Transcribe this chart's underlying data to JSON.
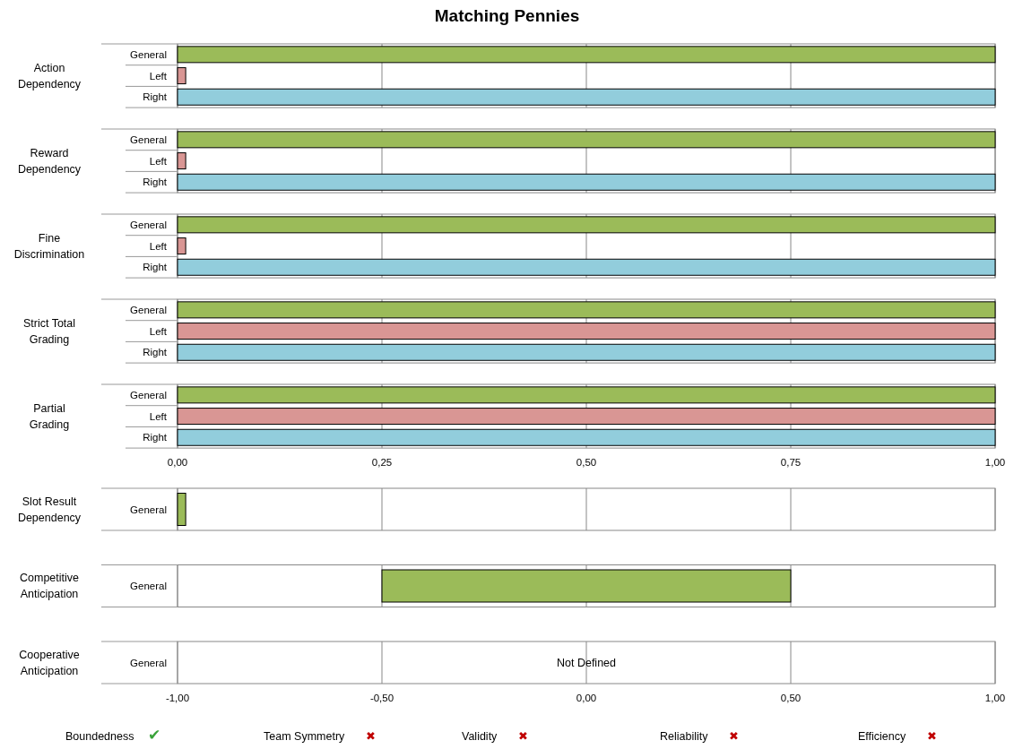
{
  "chart_data": [
    {
      "type": "bar",
      "orientation": "horizontal",
      "title": "Matching Pennies",
      "ylabel": "Action Dependency",
      "categories": [
        "General",
        "Left",
        "Right"
      ],
      "values": [
        1,
        0.01,
        1
      ],
      "colors": [
        "#9bbb59",
        "#d99694",
        "#92cddc"
      ],
      "xlim": [
        0,
        1
      ],
      "xticks": [
        {
          "value": 0,
          "label": null
        },
        {
          "value": 0.25,
          "label": null
        },
        {
          "value": 0.5,
          "label": null
        },
        {
          "value": 0.75,
          "label": null
        },
        {
          "value": 1,
          "label": null
        }
      ],
      "grid": "x",
      "tick_labels": "y"
    },
    {
      "type": "bar",
      "orientation": "horizontal",
      "ylabel": "Reward Dependency",
      "categories": [
        "General",
        "Left",
        "Right"
      ],
      "values": [
        1,
        0.01,
        1
      ],
      "colors": [
        "#9bbb59",
        "#d99694",
        "#92cddc"
      ],
      "xlim": [
        0,
        1
      ],
      "xticks": [
        {
          "value": 0,
          "label": null
        },
        {
          "value": 0.25,
          "label": null
        },
        {
          "value": 0.5,
          "label": null
        },
        {
          "value": 0.75,
          "label": null
        },
        {
          "value": 1,
          "label": null
        }
      ],
      "grid": "x",
      "tick_labels": "y"
    },
    {
      "type": "bar",
      "orientation": "horizontal",
      "ylabel": "Fine Discrimination",
      "categories": [
        "General",
        "Left",
        "Right"
      ],
      "values": [
        1,
        0.01,
        1
      ],
      "colors": [
        "#9bbb59",
        "#d99694",
        "#92cddc"
      ],
      "xlim": [
        0,
        1
      ],
      "xticks": [
        {
          "value": 0,
          "label": null
        },
        {
          "value": 0.25,
          "label": null
        },
        {
          "value": 0.5,
          "label": null
        },
        {
          "value": 0.75,
          "label": null
        },
        {
          "value": 1,
          "label": null
        }
      ],
      "grid": "x",
      "tick_labels": "y"
    },
    {
      "type": "bar",
      "orientation": "horizontal",
      "ylabel": "Strict Total Grading",
      "categories": [
        "General",
        "Left",
        "Right"
      ],
      "values": [
        1,
        1,
        1
      ],
      "colors": [
        "#9bbb59",
        "#d99694",
        "#92cddc"
      ],
      "xlim": [
        0,
        1
      ],
      "xticks": [
        {
          "value": 0,
          "label": null
        },
        {
          "value": 0.25,
          "label": null
        },
        {
          "value": 0.5,
          "label": null
        },
        {
          "value": 0.75,
          "label": null
        },
        {
          "value": 1,
          "label": null
        }
      ],
      "grid": "x",
      "tick_labels": "y"
    },
    {
      "type": "bar",
      "orientation": "horizontal",
      "ylabel": "Partial Grading",
      "categories": [
        "General",
        "Left",
        "Right"
      ],
      "values": [
        1,
        1,
        1
      ],
      "colors": [
        "#9bbb59",
        "#d99694",
        "#92cddc"
      ],
      "xlim": [
        0,
        1
      ],
      "xticks": [
        {
          "value": 0,
          "label": "0,00"
        },
        {
          "value": 0.25,
          "label": "0,25"
        },
        {
          "value": 0.5,
          "label": "0,50"
        },
        {
          "value": 0.75,
          "label": "0,75"
        },
        {
          "value": 1,
          "label": "1,00"
        }
      ],
      "grid": "x"
    },
    {
      "type": "bar",
      "orientation": "horizontal",
      "ylabel": "Slot Result Dependency",
      "categories": [
        "General"
      ],
      "values": [
        0.02
      ],
      "base": [
        -1
      ],
      "colors": [
        "#9bbb59"
      ],
      "xlim": [
        -1,
        1
      ],
      "xticks": [
        {
          "value": -1,
          "label": null
        },
        {
          "value": -0.5,
          "label": null
        },
        {
          "value": 0,
          "label": null
        },
        {
          "value": 0.5,
          "label": null
        },
        {
          "value": 1,
          "label": null
        }
      ],
      "grid": "x",
      "tick_labels": "y"
    },
    {
      "type": "bar",
      "orientation": "horizontal",
      "ylabel": "Competitive Anticipation",
      "categories": [
        "General"
      ],
      "values": [
        1
      ],
      "base": [
        -0.5
      ],
      "colors": [
        "#9bbb59"
      ],
      "xlim": [
        -1,
        1
      ],
      "xticks": [
        {
          "value": -1,
          "label": null
        },
        {
          "value": -0.5,
          "label": null
        },
        {
          "value": 0,
          "label": null
        },
        {
          "value": 0.5,
          "label": null
        },
        {
          "value": 1,
          "label": null
        }
      ],
      "grid": "x",
      "tick_labels": "y"
    },
    {
      "type": "bar",
      "orientation": "horizontal",
      "ylabel": "Cooperative Anticipation",
      "categories": [
        "General"
      ],
      "values": [
        null
      ],
      "xlim": [
        -1,
        1
      ],
      "xticks": [
        {
          "value": -1,
          "label": "-1,00"
        },
        {
          "value": -0.5,
          "label": "-0,50"
        },
        {
          "value": 0,
          "label": "0,00"
        },
        {
          "value": 0.5,
          "label": "0,50"
        },
        {
          "value": 1,
          "label": "1,00"
        }
      ],
      "grid": "x",
      "annotations": [
        "Not Defined"
      ]
    },
    {
      "type": "other",
      "annotations": [
        "Boundedness ✔",
        "Team Symmetry ✖",
        "Validity ✖",
        "Reliability ✖",
        "Efficiency ✖"
      ]
    }
  ]
}
